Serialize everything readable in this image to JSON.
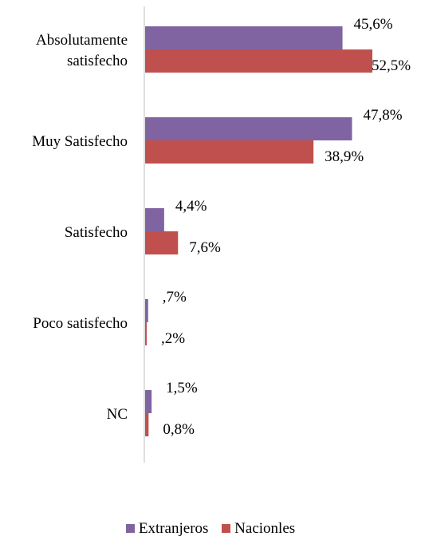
{
  "chart_data": {
    "type": "bar",
    "orientation": "horizontal",
    "categories": [
      [
        "Absolutamente",
        "satisfecho"
      ],
      [
        "Muy Satisfecho"
      ],
      [
        "Satisfecho"
      ],
      [
        "Poco satisfecho"
      ],
      [
        "NC"
      ]
    ],
    "series": [
      {
        "name": "Extranjeros",
        "color": "#8064a2",
        "values": [
          45.6,
          47.8,
          4.4,
          0.7,
          1.5
        ],
        "labels": [
          "45,6%",
          "47,8%",
          "4,4%",
          ",7%",
          "1,5%"
        ]
      },
      {
        "name": "Nacionles",
        "color": "#c0504d",
        "values": [
          52.5,
          38.9,
          7.6,
          0.2,
          0.8
        ],
        "labels": [
          "52,5%",
          "38,9%",
          "7,6%",
          ",2%",
          "0,8%"
        ]
      }
    ],
    "xlim": [
      0,
      52.5
    ],
    "axis_visible": false,
    "grid": false,
    "legend_position": "bottom"
  }
}
